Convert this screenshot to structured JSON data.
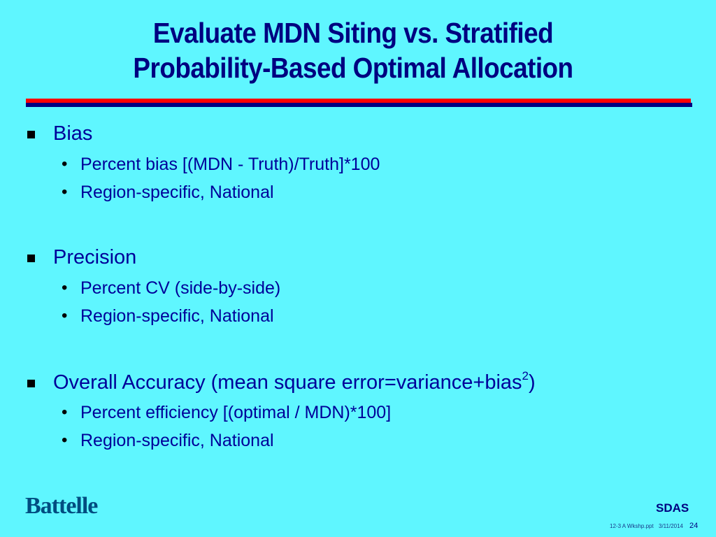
{
  "slide": {
    "title_line1": "Evaluate MDN Siting vs. Stratified",
    "title_line2": "Probability-Based  Optimal Allocation",
    "sections": [
      {
        "heading": "Bias",
        "items": [
          "Percent bias [(MDN - Truth)/Truth]*100",
          "Region-specific, National"
        ]
      },
      {
        "heading": "Precision",
        "items": [
          "Percent CV (side-by-side)",
          "Region-specific, National"
        ]
      },
      {
        "heading_prefix": "Overall Accuracy (mean square error=variance+bias",
        "heading_sup": "2",
        "heading_suffix": ")",
        "items": [
          "Percent efficiency [(optimal / MDN)*100]",
          "Region-specific, National"
        ]
      }
    ]
  },
  "footer": {
    "logo": "Battelle",
    "org": "SDAS",
    "filename": "12-3 A Wkshp.ppt",
    "date": "3/11/2014",
    "page": "24"
  },
  "colors": {
    "background": "#5ff6ff",
    "title": "#000080",
    "rule_red": "#ff0000",
    "rule_navy": "#000080",
    "text": "#000099"
  }
}
